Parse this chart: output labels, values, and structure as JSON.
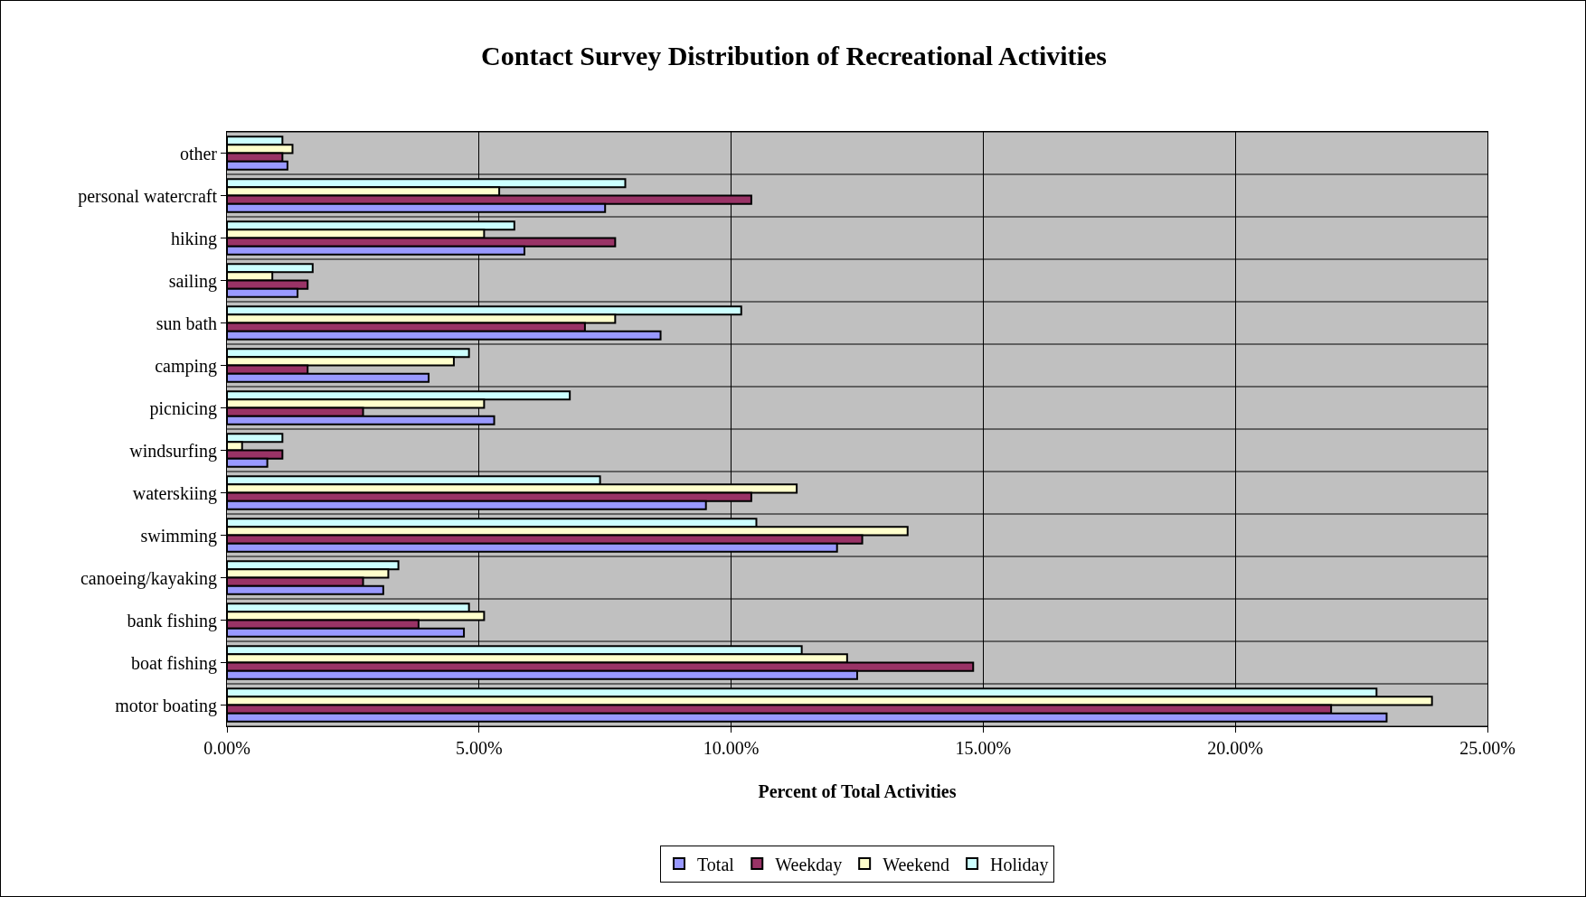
{
  "chart_data": {
    "type": "bar",
    "orientation": "horizontal",
    "title": "Contact Survey Distribution of Recreational Activities",
    "xlabel": "Percent of Total Activities",
    "categories": [
      "other",
      "personal watercraft",
      "hiking",
      "sailing",
      "sun bath",
      "camping",
      "picnicing",
      "windsurfing",
      "waterskiing",
      "swimming",
      "canoeing/kayaking",
      "bank fishing",
      "boat fishing",
      "motor boating"
    ],
    "series": [
      {
        "name": "Total",
        "color": "#9999ff",
        "values": [
          1.2,
          7.5,
          5.9,
          1.4,
          8.6,
          4.0,
          5.3,
          0.8,
          9.5,
          12.1,
          3.1,
          4.7,
          12.5,
          23.0
        ]
      },
      {
        "name": "Weekday",
        "color": "#993366",
        "values": [
          1.1,
          10.4,
          7.7,
          1.6,
          7.1,
          1.6,
          2.7,
          1.1,
          10.4,
          12.6,
          2.7,
          3.8,
          14.8,
          21.9
        ]
      },
      {
        "name": "Weekend",
        "color": "#ffffcc",
        "values": [
          1.3,
          5.4,
          5.1,
          0.9,
          7.7,
          4.5,
          5.1,
          0.3,
          11.3,
          13.5,
          3.2,
          5.1,
          12.3,
          23.9
        ]
      },
      {
        "name": "Holiday",
        "color": "#ccffff",
        "values": [
          1.1,
          7.9,
          5.7,
          1.7,
          10.2,
          4.8,
          6.8,
          1.1,
          7.4,
          10.5,
          3.4,
          4.8,
          11.4,
          22.8
        ]
      }
    ],
    "xlim": [
      0,
      25
    ],
    "xticks": [
      {
        "value": 0,
        "label": "0.00%"
      },
      {
        "value": 5,
        "label": "5.00%"
      },
      {
        "value": 10,
        "label": "10.00%"
      },
      {
        "value": 15,
        "label": "15.00%"
      },
      {
        "value": 20,
        "label": "20.00%"
      },
      {
        "value": 25,
        "label": "25.00%"
      }
    ],
    "grid": "x",
    "legend": "bottom"
  }
}
